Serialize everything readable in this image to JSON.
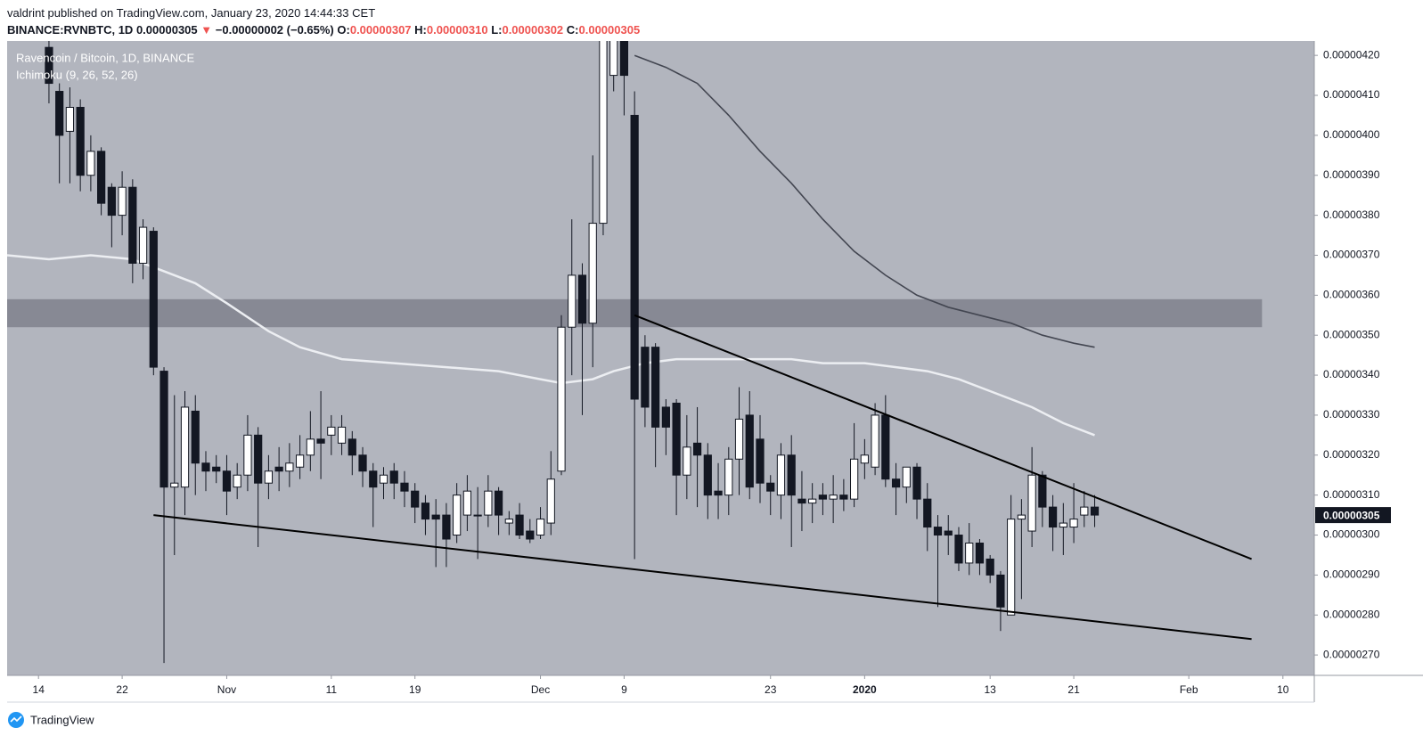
{
  "header": {
    "publisher": "valdrint published on TradingView.com, January 23, 2020 14:44:33 CET",
    "symbol": "BINANCE:RVNBTC, 1D",
    "last": "0.00000305",
    "arrow": "▼",
    "change": "−0.00000002 (−0.65%)",
    "open_label": "O:",
    "open": "0.00000307",
    "high_label": "H:",
    "high": "0.00000310",
    "low_label": "L:",
    "low": "0.00000302",
    "close_label": "C:",
    "close": "0.00000305"
  },
  "footer": {
    "logo": "TradingView"
  },
  "chart_data": {
    "type": "candlestick",
    "title": "Ravencoin / Bitcoin, 1D, BINANCE",
    "subtitle": "Ichimoku (9, 26, 52, 26)",
    "up_color": "#ffffff",
    "down_color": "#131722",
    "background": "#b2b5be",
    "grid": false,
    "xlim": [
      "2019-10-11",
      "2020-02-13"
    ],
    "ylim": [
      2.649e-06,
      4.236e-06
    ],
    "xticks": [
      {
        "value": "2019-10-14",
        "label": "14"
      },
      {
        "value": "2019-10-22",
        "label": "22"
      },
      {
        "value": "2019-11-01",
        "label": "Nov"
      },
      {
        "value": "2019-11-11",
        "label": "11"
      },
      {
        "value": "2019-11-19",
        "label": "19"
      },
      {
        "value": "2019-12-01",
        "label": "Dec"
      },
      {
        "value": "2019-12-09",
        "label": "9"
      },
      {
        "value": "2019-12-23",
        "label": "23"
      },
      {
        "value": "2020-01-01",
        "label": "2020"
      },
      {
        "value": "2020-01-13",
        "label": "13"
      },
      {
        "value": "2020-01-21",
        "label": "21"
      },
      {
        "value": "2020-02-01",
        "label": "Feb"
      },
      {
        "value": "2020-02-10",
        "label": "10"
      }
    ],
    "yticks": [
      {
        "value": 4.2e-06,
        "label": "0.00000420"
      },
      {
        "value": 4.1e-06,
        "label": "0.00000410"
      },
      {
        "value": 4e-06,
        "label": "0.00000400"
      },
      {
        "value": 3.9e-06,
        "label": "0.00000390"
      },
      {
        "value": 3.8e-06,
        "label": "0.00000380"
      },
      {
        "value": 3.7e-06,
        "label": "0.00000370"
      },
      {
        "value": 3.6e-06,
        "label": "0.00000360"
      },
      {
        "value": 3.5e-06,
        "label": "0.00000350"
      },
      {
        "value": 3.4e-06,
        "label": "0.00000340"
      },
      {
        "value": 3.3e-06,
        "label": "0.00000330"
      },
      {
        "value": 3.2e-06,
        "label": "0.00000320"
      },
      {
        "value": 3.1e-06,
        "label": "0.00000310"
      },
      {
        "value": 3e-06,
        "label": "0.00000300"
      },
      {
        "value": 2.9e-06,
        "label": "0.00000290"
      },
      {
        "value": 2.8e-06,
        "label": "0.00000280"
      },
      {
        "value": 2.7e-06,
        "label": "0.00000270"
      }
    ],
    "x": [
      "2019-10-15",
      "2019-10-16",
      "2019-10-17",
      "2019-10-18",
      "2019-10-19",
      "2019-10-20",
      "2019-10-21",
      "2019-10-22",
      "2019-10-23",
      "2019-10-24",
      "2019-10-25",
      "2019-10-26",
      "2019-10-27",
      "2019-10-28",
      "2019-10-29",
      "2019-10-30",
      "2019-10-31",
      "2019-11-01",
      "2019-11-02",
      "2019-11-03",
      "2019-11-04",
      "2019-11-05",
      "2019-11-06",
      "2019-11-07",
      "2019-11-08",
      "2019-11-09",
      "2019-11-10",
      "2019-11-11",
      "2019-11-12",
      "2019-11-13",
      "2019-11-14",
      "2019-11-15",
      "2019-11-16",
      "2019-11-17",
      "2019-11-18",
      "2019-11-19",
      "2019-11-20",
      "2019-11-21",
      "2019-11-22",
      "2019-11-23",
      "2019-11-24",
      "2019-11-25",
      "2019-11-26",
      "2019-11-27",
      "2019-11-28",
      "2019-11-29",
      "2019-11-30",
      "2019-12-01",
      "2019-12-02",
      "2019-12-03",
      "2019-12-04",
      "2019-12-05",
      "2019-12-06",
      "2019-12-07",
      "2019-12-08",
      "2019-12-09",
      "2019-12-10",
      "2019-12-11",
      "2019-12-12",
      "2019-12-13",
      "2019-12-14",
      "2019-12-15",
      "2019-12-16",
      "2019-12-17",
      "2019-12-18",
      "2019-12-19",
      "2019-12-20",
      "2019-12-21",
      "2019-12-22",
      "2019-12-23",
      "2019-12-24",
      "2019-12-25",
      "2019-12-26",
      "2019-12-27",
      "2019-12-28",
      "2019-12-29",
      "2019-12-30",
      "2019-12-31",
      "2020-01-01",
      "2020-01-02",
      "2020-01-03",
      "2020-01-04",
      "2020-01-05",
      "2020-01-06",
      "2020-01-07",
      "2020-01-08",
      "2020-01-09",
      "2020-01-10",
      "2020-01-11",
      "2020-01-12",
      "2020-01-13",
      "2020-01-14",
      "2020-01-15",
      "2020-01-16",
      "2020-01-17",
      "2020-01-18",
      "2020-01-19",
      "2020-01-20",
      "2020-01-21",
      "2020-01-22",
      "2020-01-23"
    ],
    "open": [
      4.22e-06,
      4.11e-06,
      4.01e-06,
      4.07e-06,
      3.9e-06,
      3.96e-06,
      3.87e-06,
      3.8e-06,
      3.87e-06,
      3.68e-06,
      3.76e-06,
      3.41e-06,
      3.12e-06,
      3.12e-06,
      3.31e-06,
      3.18e-06,
      3.17e-06,
      3.16e-06,
      3.12e-06,
      3.15e-06,
      3.25e-06,
      3.13e-06,
      3.17e-06,
      3.16e-06,
      3.17e-06,
      3.2e-06,
      3.24e-06,
      3.25e-06,
      3.23e-06,
      3.24e-06,
      3.2e-06,
      3.16e-06,
      3.13e-06,
      3.16e-06,
      3.13e-06,
      3.11e-06,
      3.08e-06,
      3.05e-06,
      3.05e-06,
      3e-06,
      3.05e-06,
      3.05e-06,
      3.05e-06,
      3.11e-06,
      3.03e-06,
      3.05e-06,
      3.01e-06,
      3e-06,
      3.03e-06,
      3.16e-06,
      3.52e-06,
      3.65e-06,
      3.53e-06,
      3.78e-06,
      4.15e-06,
      4.31e-06,
      4.05e-06,
      3.47e-06,
      3.47e-06,
      3.32e-06,
      3.33e-06,
      3.15e-06,
      3.23e-06,
      3.2e-06,
      3.11e-06,
      3.1e-06,
      3.19e-06,
      3.3e-06,
      3.24e-06,
      3.13e-06,
      3.1e-06,
      3.2e-06,
      3.09e-06,
      3.08e-06,
      3.1e-06,
      3.09e-06,
      3.1e-06,
      3.09e-06,
      3.18e-06,
      3.17e-06,
      3.3e-06,
      3.14e-06,
      3.12e-06,
      3.17e-06,
      3.09e-06,
      3.02e-06,
      3.01e-06,
      3e-06,
      2.93e-06,
      2.98e-06,
      2.94e-06,
      2.9e-06,
      2.8e-06,
      3.04e-06,
      3.01e-06,
      3.15e-06,
      3.07e-06,
      3.02e-06,
      3.02e-06,
      3.05e-06,
      3.07e-06
    ],
    "high": [
      4.24e-06,
      4.13e-06,
      4.12e-06,
      4.09e-06,
      4e-06,
      3.97e-06,
      3.88e-06,
      3.91e-06,
      3.89e-06,
      3.79e-06,
      3.77e-06,
      3.42e-06,
      3.35e-06,
      3.36e-06,
      3.35e-06,
      3.21e-06,
      3.2e-06,
      3.2e-06,
      3.18e-06,
      3.3e-06,
      3.27e-06,
      3.2e-06,
      3.22e-06,
      3.23e-06,
      3.25e-06,
      3.31e-06,
      3.36e-06,
      3.3e-06,
      3.3e-06,
      3.26e-06,
      3.22e-06,
      3.18e-06,
      3.17e-06,
      3.18e-06,
      3.16e-06,
      3.13e-06,
      3.1e-06,
      3.09e-06,
      3.08e-06,
      3.13e-06,
      3.15e-06,
      3.12e-06,
      3.15e-06,
      3.12e-06,
      3.06e-06,
      3.08e-06,
      3.04e-06,
      3.07e-06,
      3.21e-06,
      3.55e-06,
      3.79e-06,
      3.68e-06,
      3.95e-06,
      4.4e-06,
      4.45e-06,
      4.4e-06,
      4.11e-06,
      3.5e-06,
      3.48e-06,
      3.34e-06,
      3.34e-06,
      3.3e-06,
      3.32e-06,
      3.23e-06,
      3.18e-06,
      3.22e-06,
      3.37e-06,
      3.36e-06,
      3.3e-06,
      3.15e-06,
      3.23e-06,
      3.25e-06,
      3.16e-06,
      3.13e-06,
      3.13e-06,
      3.15e-06,
      3.14e-06,
      3.28e-06,
      3.24e-06,
      3.33e-06,
      3.35e-06,
      3.18e-06,
      3.17e-06,
      3.18e-06,
      3.13e-06,
      3.05e-06,
      3.05e-06,
      3.02e-06,
      3.03e-06,
      2.99e-06,
      2.95e-06,
      2.91e-06,
      3.1e-06,
      3.09e-06,
      3.22e-06,
      3.16e-06,
      3.1e-06,
      3.08e-06,
      3.13e-06,
      3.11e-06,
      3.1e-06
    ],
    "low": [
      4.08e-06,
      3.88e-06,
      3.88e-06,
      3.86e-06,
      3.86e-06,
      3.8e-06,
      3.72e-06,
      3.75e-06,
      3.63e-06,
      3.64e-06,
      3.4e-06,
      2.68e-06,
      2.95e-06,
      3.05e-06,
      3.1e-06,
      3.11e-06,
      3.13e-06,
      3.05e-06,
      3.09e-06,
      3.11e-06,
      2.97e-06,
      3.09e-06,
      3.11e-06,
      3.12e-06,
      3.14e-06,
      3.16e-06,
      3.14e-06,
      3.2e-06,
      3.2e-06,
      3.15e-06,
      3.12e-06,
      3.02e-06,
      3.09e-06,
      3.09e-06,
      3.07e-06,
      3.03e-06,
      3e-06,
      2.92e-06,
      2.92e-06,
      2.98e-06,
      3.01e-06,
      2.94e-06,
      3.02e-06,
      3e-06,
      3e-06,
      2.99e-06,
      2.98e-06,
      2.99e-06,
      3e-06,
      3.15e-06,
      3.4e-06,
      3.3e-06,
      3.42e-06,
      3.75e-06,
      4.11e-06,
      4.05e-06,
      2.94e-06,
      3.27e-06,
      3.17e-06,
      3.2e-06,
      3.05e-06,
      3.09e-06,
      3.07e-06,
      3.04e-06,
      3.04e-06,
      3.05e-06,
      3.1e-06,
      3.09e-06,
      3.08e-06,
      3.05e-06,
      3.04e-06,
      2.97e-06,
      3.01e-06,
      3.03e-06,
      3.05e-06,
      3.03e-06,
      3.06e-06,
      3.07e-06,
      3.14e-06,
      3.15e-06,
      3.12e-06,
      3.05e-06,
      3.08e-06,
      3.04e-06,
      2.96e-06,
      2.82e-06,
      2.95e-06,
      2.91e-06,
      2.9e-06,
      2.9e-06,
      2.88e-06,
      2.76e-06,
      2.8e-06,
      2.84e-06,
      2.97e-06,
      3.02e-06,
      2.96e-06,
      2.95e-06,
      2.98e-06,
      3.02e-06,
      3.02e-06
    ],
    "close": [
      4.13e-06,
      4e-06,
      4.07e-06,
      3.9e-06,
      3.96e-06,
      3.83e-06,
      3.8e-06,
      3.87e-06,
      3.68e-06,
      3.77e-06,
      3.42e-06,
      3.12e-06,
      3.13e-06,
      3.32e-06,
      3.18e-06,
      3.16e-06,
      3.16e-06,
      3.11e-06,
      3.15e-06,
      3.25e-06,
      3.13e-06,
      3.16e-06,
      3.16e-06,
      3.18e-06,
      3.2e-06,
      3.24e-06,
      3.23e-06,
      3.27e-06,
      3.27e-06,
      3.2e-06,
      3.16e-06,
      3.12e-06,
      3.15e-06,
      3.13e-06,
      3.11e-06,
      3.07e-06,
      3.04e-06,
      3.04e-06,
      2.99e-06,
      3.1e-06,
      3.11e-06,
      3.05e-06,
      3.11e-06,
      3.05e-06,
      3.04e-06,
      3e-06,
      2.99e-06,
      3.04e-06,
      3.14e-06,
      3.52e-06,
      3.65e-06,
      3.53e-06,
      3.78e-06,
      4.3e-06,
      4.3e-06,
      4.15e-06,
      3.34e-06,
      3.32e-06,
      3.27e-06,
      3.27e-06,
      3.15e-06,
      3.22e-06,
      3.2e-06,
      3.1e-06,
      3.1e-06,
      3.19e-06,
      3.29e-06,
      3.12e-06,
      3.13e-06,
      3.11e-06,
      3.2e-06,
      3.1e-06,
      3.08e-06,
      3.09e-06,
      3.09e-06,
      3.1e-06,
      3.09e-06,
      3.19e-06,
      3.2e-06,
      3.3e-06,
      3.14e-06,
      3.12e-06,
      3.17e-06,
      3.09e-06,
      3.02e-06,
      3e-06,
      3e-06,
      2.93e-06,
      2.98e-06,
      2.93e-06,
      2.9e-06,
      2.82e-06,
      3.04e-06,
      3.05e-06,
      3.15e-06,
      3.07e-06,
      3.02e-06,
      3.03e-06,
      3.04e-06,
      3.07e-06,
      3.05e-06
    ],
    "lines": [
      {
        "color": "#eceef2",
        "width": 2.5,
        "x": [
          "2019-10-11",
          "2019-10-15",
          "2019-10-19",
          "2019-10-23",
          "2019-10-25",
          "2019-10-29",
          "2019-11-01",
          "2019-11-05",
          "2019-11-08",
          "2019-11-12",
          "2019-11-17",
          "2019-11-22",
          "2019-11-27",
          "2019-12-01",
          "2019-12-03",
          "2019-12-06",
          "2019-12-08",
          "2019-12-11",
          "2019-12-14",
          "2019-12-18",
          "2019-12-21",
          "2019-12-25",
          "2019-12-28",
          "2020-01-01",
          "2020-01-04",
          "2020-01-07",
          "2020-01-10",
          "2020-01-13",
          "2020-01-17",
          "2020-01-20",
          "2020-01-23"
        ],
        "values": [
          3.7e-06,
          3.69e-06,
          3.7e-06,
          3.69e-06,
          3.67e-06,
          3.63e-06,
          3.58e-06,
          3.51e-06,
          3.47e-06,
          3.44e-06,
          3.43e-06,
          3.42e-06,
          3.41e-06,
          3.39e-06,
          3.38e-06,
          3.39e-06,
          3.41e-06,
          3.43e-06,
          3.44e-06,
          3.44e-06,
          3.44e-06,
          3.44e-06,
          3.43e-06,
          3.43e-06,
          3.42e-06,
          3.41e-06,
          3.39e-06,
          3.36e-06,
          3.32e-06,
          3.28e-06,
          3.25e-06
        ]
      },
      {
        "color": "#434651",
        "width": 1.6,
        "x": [
          "2019-12-10",
          "2019-12-13",
          "2019-12-16",
          "2019-12-19",
          "2019-12-22",
          "2019-12-25",
          "2019-12-28",
          "2019-12-31",
          "2020-01-03",
          "2020-01-06",
          "2020-01-09",
          "2020-01-12",
          "2020-01-15",
          "2020-01-18",
          "2020-01-21",
          "2020-01-23"
        ],
        "values": [
          4.2e-06,
          4.17e-06,
          4.13e-06,
          4.05e-06,
          3.96e-06,
          3.88e-06,
          3.79e-06,
          3.71e-06,
          3.65e-06,
          3.6e-06,
          3.57e-06,
          3.55e-06,
          3.53e-06,
          3.5e-06,
          3.48e-06,
          3.47e-06
        ]
      }
    ],
    "trendlines": [
      {
        "color": "#000000",
        "x": [
          "2019-12-10",
          "2020-02-07"
        ],
        "values": [
          3.55e-06,
          2.94e-06
        ]
      },
      {
        "color": "#000000",
        "x": [
          "2019-10-25",
          "2020-02-07"
        ],
        "values": [
          3.05e-06,
          2.74e-06
        ]
      }
    ],
    "zone": {
      "color": "#787b86",
      "xlim": [
        "2019-10-11",
        "2020-02-08"
      ],
      "ylim": [
        3.52e-06,
        3.59e-06
      ]
    },
    "last_price": {
      "value": 3.05e-06,
      "label": "0.00000305"
    }
  }
}
